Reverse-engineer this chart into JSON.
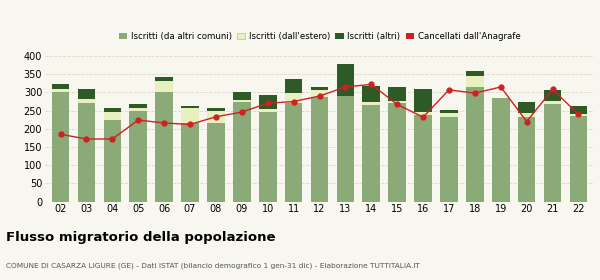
{
  "years": [
    "02",
    "03",
    "04",
    "05",
    "06",
    "07",
    "08",
    "09",
    "10",
    "11",
    "12",
    "13",
    "14",
    "15",
    "16",
    "17",
    "18",
    "19",
    "20",
    "21",
    "22"
  ],
  "iscritti_comuni": [
    300,
    272,
    225,
    250,
    300,
    215,
    215,
    273,
    245,
    270,
    288,
    290,
    265,
    270,
    237,
    233,
    315,
    285,
    232,
    268,
    235
  ],
  "iscritti_estero": [
    8,
    10,
    22,
    7,
    32,
    42,
    35,
    7,
    10,
    28,
    18,
    0,
    8,
    6,
    10,
    10,
    30,
    0,
    12,
    8,
    5
  ],
  "iscritti_altri": [
    15,
    28,
    10,
    11,
    10,
    6,
    8,
    22,
    38,
    40,
    10,
    88,
    45,
    38,
    62,
    10,
    15,
    0,
    30,
    30,
    22
  ],
  "cancellati": [
    185,
    172,
    172,
    224,
    216,
    212,
    233,
    246,
    270,
    275,
    290,
    315,
    322,
    267,
    232,
    307,
    298,
    315,
    220,
    308,
    240
  ],
  "color_comuni": "#8aaa78",
  "color_estero": "#e8f0c0",
  "color_altri": "#2d5a27",
  "color_cancellati": "#cc2222",
  "title": "Flusso migratorio della popolazione",
  "subtitle": "COMUNE DI CASARZA LIGURE (GE) - Dati ISTAT (bilancio demografico 1 gen-31 dic) - Elaborazione TUTTITALIA.IT",
  "legend_labels": [
    "Iscritti (da altri comuni)",
    "Iscritti (dall'estero)",
    "Iscritti (altri)",
    "Cancellati dall'Anagrafe"
  ],
  "ylim": [
    0,
    400
  ],
  "yticks": [
    0,
    50,
    100,
    150,
    200,
    250,
    300,
    350,
    400
  ],
  "background_color": "#f7f7ef",
  "grid_color": "#d8d8cc"
}
